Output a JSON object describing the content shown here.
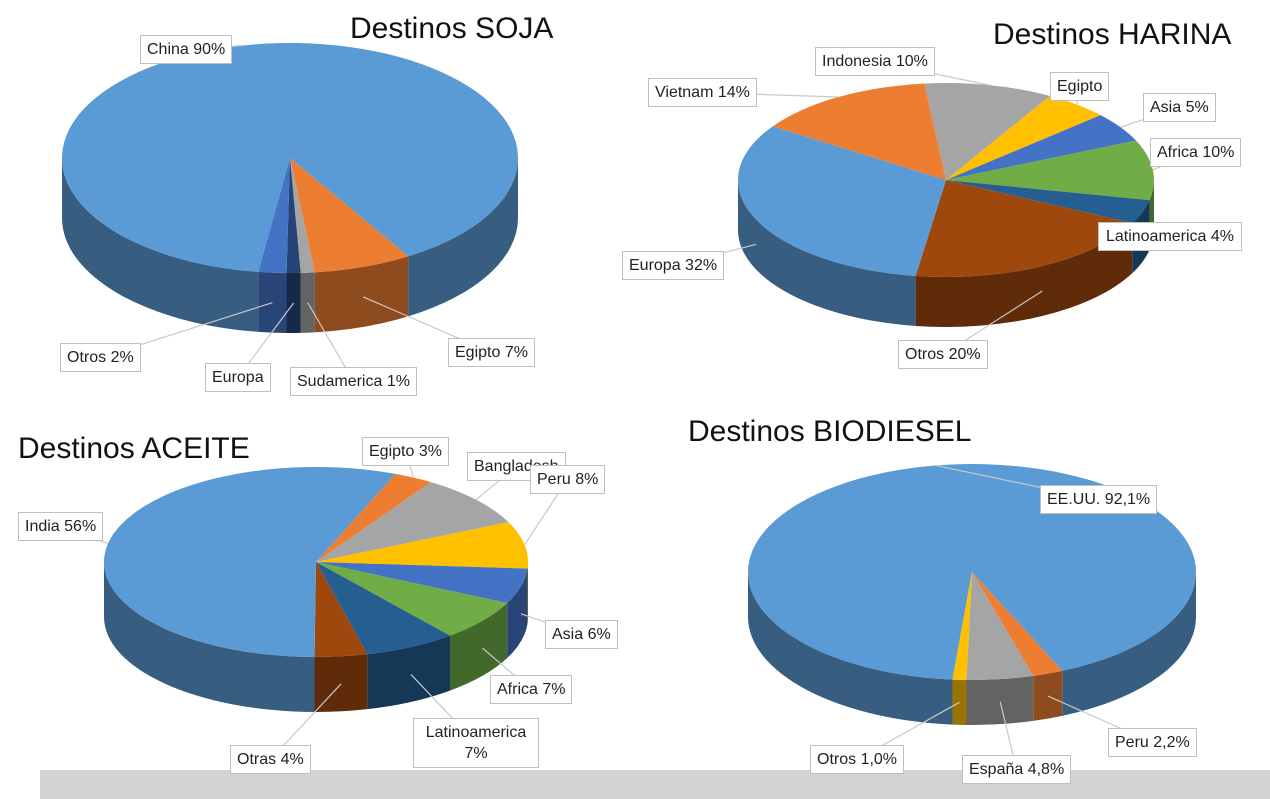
{
  "chart_data": [
    {
      "type": "pie",
      "title": "Destinos SOJA",
      "value_labels": [
        "China 90%",
        "Egipto 7%",
        "Sudamerica 1%",
        "Europa",
        "Otros 2%"
      ],
      "values": [
        90,
        7,
        1,
        1,
        2
      ],
      "colors": [
        "#5b9bd5",
        "#ed7d31",
        "#a5a5a5",
        "#264478",
        "#4472c4"
      ]
    },
    {
      "type": "pie",
      "title": "Destinos HARINA",
      "value_labels": [
        "Indonesia 10%",
        "Egipto",
        "Asia 5%",
        "Africa 10%",
        "Latinoamerica 4%",
        "Otros 20%",
        "Europa 32%",
        "Vietnam 14%"
      ],
      "values": [
        10,
        5,
        5,
        10,
        4,
        20,
        32,
        14
      ],
      "colors": [
        "#a5a5a5",
        "#ffc000",
        "#4472c4",
        "#70ad47",
        "#255e91",
        "#9e480e",
        "#5b9bd5",
        "#ed7d31"
      ]
    },
    {
      "type": "pie",
      "title": "Destinos ACEITE",
      "value_labels": [
        "Egipto 3%",
        "Bangladesh",
        "Peru 8%",
        "Asia 6%",
        "Africa 7%",
        "Latinoamerica 7%",
        "Otras 4%",
        "India 56%"
      ],
      "values": [
        3,
        9,
        8,
        6,
        7,
        7,
        4,
        56
      ],
      "colors": [
        "#ed7d31",
        "#a5a5a5",
        "#ffc000",
        "#4472c4",
        "#70ad47",
        "#255e91",
        "#9e480e",
        "#5b9bd5"
      ]
    },
    {
      "type": "pie",
      "title": "Destinos BIODIESEL",
      "value_labels": [
        "EE.UU. 92,1%",
        "Peru 2,2%",
        "España 4,8%",
        "Otros 1,0%"
      ],
      "values": [
        92.1,
        2.2,
        4.8,
        1.0
      ],
      "colors": [
        "#5b9bd5",
        "#ed7d31",
        "#a5a5a5",
        "#ffc000"
      ]
    }
  ]
}
